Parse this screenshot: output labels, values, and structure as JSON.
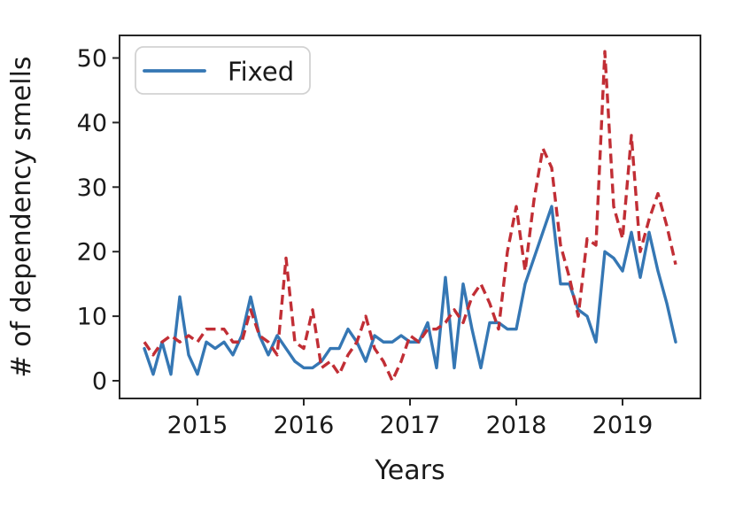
{
  "figure": {
    "background_color": "#ffffff",
    "spine_color": "#262626",
    "text_color": "#1a1a1a"
  },
  "legend": {
    "items": [
      {
        "label": "Fixed",
        "color": "#3577b4",
        "line_style": "solid"
      }
    ],
    "border_color": "#d2d2d2",
    "position": "upper-left"
  },
  "axes": {
    "xlabel": "Years",
    "ylabel": "# of dependency smells",
    "x_tick_labels": [
      "2015",
      "2016",
      "2017",
      "2018",
      "2019"
    ],
    "y_tick_labels": [
      "0",
      "10",
      "20",
      "30",
      "40",
      "50"
    ]
  },
  "chart_data": {
    "type": "line",
    "title": "",
    "xlabel": "Years",
    "ylabel": "# of dependency smells",
    "x_start_month": "2014-07",
    "x_end_month": "2019-07",
    "x_frequency": "monthly",
    "x_tick_months": [
      "2015-01",
      "2016-01",
      "2017-01",
      "2018-01",
      "2019-01"
    ],
    "x_tick_labels": [
      "2015",
      "2016",
      "2017",
      "2018",
      "2019"
    ],
    "y_ticks": [
      0,
      10,
      20,
      30,
      40,
      50
    ],
    "ylim_approx": [
      -2.7,
      53.5
    ],
    "grid": false,
    "legend_position": "upper-left",
    "series": [
      {
        "name": "Fixed",
        "in_legend": true,
        "color": "#3577b4",
        "style": "solid",
        "values": [
          5,
          1,
          6,
          1,
          13,
          4,
          1,
          6,
          5,
          6,
          4,
          7,
          13,
          7,
          4,
          7,
          5,
          3,
          2,
          2,
          3,
          5,
          5,
          8,
          6,
          3,
          7,
          6,
          6,
          7,
          6,
          6,
          9,
          2,
          16,
          2,
          15,
          8,
          2,
          9,
          9,
          8,
          8,
          15,
          19,
          23,
          27,
          15,
          15,
          11,
          10,
          6,
          20,
          19,
          17,
          23,
          16,
          23,
          17,
          12,
          6
        ]
      },
      {
        "name": "unlabeled-dashed-red",
        "in_legend": false,
        "color": "#c12e35",
        "style": "dashed",
        "values": [
          6,
          4,
          6,
          7,
          6,
          7,
          6,
          8,
          8,
          8,
          6,
          6,
          11,
          7,
          6,
          4,
          19,
          6,
          5,
          11,
          2,
          3,
          1,
          4,
          6,
          10,
          5,
          3,
          0,
          3,
          7,
          6,
          8,
          8,
          9,
          11,
          9,
          13,
          15,
          12,
          8,
          20,
          27,
          17,
          28,
          36,
          33,
          21,
          16,
          10,
          22,
          21,
          51,
          27,
          22,
          38,
          20,
          25,
          29,
          24,
          18
        ]
      }
    ]
  }
}
